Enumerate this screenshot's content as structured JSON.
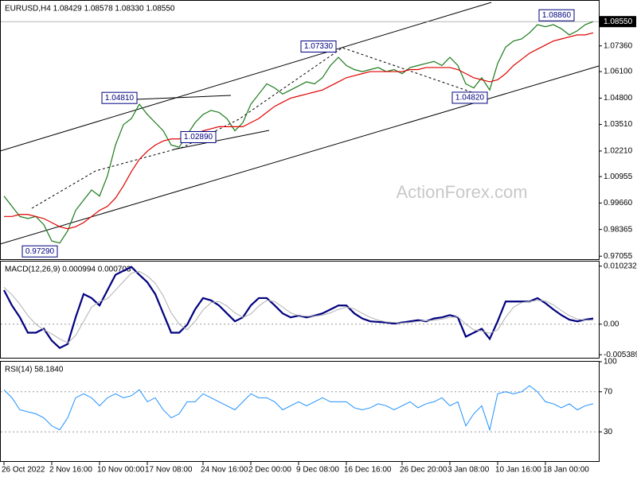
{
  "chart_data": [
    {
      "type": "line",
      "title": "EURUSD,H4  1.08429 1.08578 1.08330 1.08550",
      "watermark": "ActionForex.com",
      "categories": [
        "26 Oct 2022",
        null,
        null,
        null,
        null,
        null,
        "2 Nov 16:00",
        null,
        null,
        null,
        null,
        null,
        "10 Nov 00:00",
        null,
        null,
        null,
        null,
        null,
        "17 Nov 08:00",
        null,
        null,
        null,
        null,
        null,
        null,
        "24 Nov 16:00",
        null,
        null,
        null,
        null,
        null,
        "2 Dec 00:00",
        null,
        null,
        null,
        null,
        null,
        "9 Dec 08:00",
        null,
        null,
        null,
        null,
        null,
        "16 Dec 16:00",
        null,
        null,
        null,
        null,
        null,
        null,
        "26 Dec 20:00",
        null,
        null,
        null,
        null,
        null,
        "3 Jan 08:00",
        null,
        null,
        null,
        null,
        null,
        "10 Jan 16:00",
        null,
        null,
        null,
        null,
        null,
        "18 Jan 00:00",
        null,
        null,
        null,
        null,
        null,
        null
      ],
      "series": [
        {
          "color": "#1a7a1a",
          "width": 1.2,
          "values": [
            1.0,
            0.995,
            0.99,
            0.989,
            0.99,
            0.986,
            0.978,
            0.977,
            0.983,
            0.993,
            0.998,
            1.003,
            1.0,
            1.01,
            1.025,
            1.035,
            1.038,
            1.045,
            1.04,
            1.036,
            1.032,
            1.025,
            1.024,
            1.03,
            1.036,
            1.04,
            1.042,
            1.041,
            1.038,
            1.032,
            1.036,
            1.045,
            1.05,
            1.055,
            1.053,
            1.05,
            1.052,
            1.054,
            1.056,
            1.055,
            1.058,
            1.064,
            1.068,
            1.064,
            1.062,
            1.061,
            1.062,
            1.063,
            1.061,
            1.062,
            1.06,
            1.063,
            1.064,
            1.065,
            1.066,
            1.064,
            1.068,
            1.064,
            1.055,
            1.053,
            1.058,
            1.052,
            1.065,
            1.073,
            1.076,
            1.077,
            1.08,
            1.084,
            1.083,
            1.084,
            1.082,
            1.079,
            1.081,
            1.084,
            1.0855
          ]
        },
        {
          "color": "#e00000",
          "width": 1.2,
          "values": [
            0.99,
            0.99,
            0.991,
            0.991,
            0.99,
            0.989,
            0.987,
            0.985,
            0.984,
            0.985,
            0.987,
            0.99,
            0.993,
            0.995,
            0.999,
            1.005,
            1.012,
            1.018,
            1.022,
            1.025,
            1.027,
            1.028,
            1.028,
            1.029,
            1.03,
            1.032,
            1.033,
            1.034,
            1.034,
            1.034,
            1.034,
            1.036,
            1.038,
            1.041,
            1.044,
            1.046,
            1.048,
            1.049,
            1.05,
            1.051,
            1.052,
            1.054,
            1.056,
            1.058,
            1.059,
            1.06,
            1.061,
            1.061,
            1.061,
            1.061,
            1.061,
            1.062,
            1.062,
            1.063,
            1.063,
            1.063,
            1.063,
            1.062,
            1.06,
            1.058,
            1.057,
            1.056,
            1.057,
            1.06,
            1.064,
            1.067,
            1.07,
            1.072,
            1.074,
            1.076,
            1.077,
            1.078,
            1.079,
            1.079,
            1.08
          ]
        }
      ],
      "ylim": [
        0.9687,
        1.0957
      ],
      "yticks": [
        {
          "value": 1.0736,
          "label": "1.07360"
        },
        {
          "value": 1.061,
          "label": "1.06100"
        },
        {
          "value": 1.048,
          "label": "1.04800"
        },
        {
          "value": 1.0351,
          "label": "1.03510"
        },
        {
          "value": 1.0221,
          "label": "1.02210"
        },
        {
          "value": 1.00955,
          "label": "1.00955"
        },
        {
          "value": 0.9966,
          "label": "0.99660"
        },
        {
          "value": 0.98365,
          "label": "0.98365"
        },
        {
          "value": 0.97055,
          "label": "0.97055"
        }
      ],
      "current_price": {
        "value": 1.0855,
        "label": "1.08550"
      },
      "annotations": [
        {
          "index": 17,
          "value": 1.0481,
          "label": "1.04810"
        },
        {
          "index": 22,
          "value": 1.0289,
          "label": "1.02890"
        },
        {
          "index": 42,
          "value": 1.0733,
          "label": "1.07330"
        },
        {
          "index": 61,
          "value": 1.0482,
          "label": "1.04820"
        },
        {
          "index": 67,
          "value": 1.0886,
          "label": "1.08860"
        },
        {
          "index": 7,
          "value": 0.9729,
          "label": "0.97290"
        }
      ]
    },
    {
      "type": "line",
      "title": "MACD(12,26,9) 0.000994 0.000703",
      "series": [
        {
          "color": "#000080",
          "width": 2.2,
          "values": [
            0.006,
            0.0033,
            0.0012,
            -0.0015,
            -0.0015,
            -0.0008,
            -0.0029,
            -0.0042,
            -0.0035,
            0.0012,
            0.0053,
            0.0046,
            0.0033,
            0.006,
            0.0087,
            0.0094,
            0.0101,
            0.0087,
            0.0074,
            0.0053,
            0.0019,
            -0.0015,
            -0.0015,
            -0.0001,
            0.0026,
            0.0046,
            0.0042,
            0.0033,
            0.0019,
            0.0005,
            0.0012,
            0.0033,
            0.0046,
            0.0046,
            0.0033,
            0.0019,
            0.0012,
            0.0015,
            0.0012,
            0.0015,
            0.0019,
            0.0026,
            0.0033,
            0.0033,
            0.0019,
            0.001,
            0.0005,
            0.0004,
            0.0003,
            0.0001,
            0.0003,
            0.0005,
            0.0007,
            0.0005,
            0.001,
            0.0012,
            0.0016,
            0.0012,
            -0.0022,
            -0.0015,
            -0.0008,
            -0.0026,
            0.0005,
            0.004,
            0.004,
            0.004,
            0.004,
            0.0046,
            0.0037,
            0.0026,
            0.0016,
            0.0008,
            0.0005,
            0.0008,
            0.001
          ]
        },
        {
          "color": "#b0b0b0",
          "width": 1,
          "values": [
            0.0065,
            0.0052,
            0.0035,
            0.0015,
            0.0,
            -0.001,
            -0.0017,
            -0.0026,
            -0.0033,
            -0.002,
            0.0005,
            0.003,
            0.004,
            0.0045,
            0.006,
            0.0075,
            0.009,
            0.0093,
            0.0085,
            0.0072,
            0.005,
            0.002,
            0.0,
            -0.001,
            0.0005,
            0.0025,
            0.0038,
            0.004,
            0.0032,
            0.002,
            0.0012,
            0.0018,
            0.0032,
            0.0042,
            0.004,
            0.003,
            0.002,
            0.0015,
            0.0014,
            0.0014,
            0.0016,
            0.002,
            0.0026,
            0.003,
            0.0027,
            0.0019,
            0.0012,
            0.0007,
            0.0004,
            0.0003,
            0.0002,
            0.0003,
            0.0005,
            0.0006,
            0.0007,
            0.0009,
            0.0012,
            0.0013,
            0.0,
            -0.001,
            -0.0012,
            -0.0016,
            -0.001,
            0.0012,
            0.003,
            0.0038,
            0.004,
            0.0042,
            0.0041,
            0.0034,
            0.0024,
            0.0015,
            0.0009,
            0.0007,
            0.0007
          ]
        }
      ],
      "ylim": [
        -0.00606,
        0.01104
      ],
      "yticks": [
        0.010232,
        {
          "value": 0,
          "label": "0.00"
        },
        -0.005389
      ],
      "zero_line": true
    },
    {
      "type": "line",
      "title": "RSI(14) 58.1840",
      "series": [
        {
          "color": "#1e90ff",
          "width": 1,
          "values": [
            72,
            64,
            52,
            50,
            48,
            44,
            36,
            32,
            44,
            64,
            68,
            64,
            56,
            64,
            68,
            64,
            66,
            72,
            60,
            64,
            52,
            44,
            48,
            60,
            60,
            68,
            64,
            60,
            56,
            52,
            60,
            68,
            64,
            64,
            60,
            52,
            56,
            60,
            56,
            60,
            64,
            60,
            60,
            60,
            54,
            52,
            54,
            58,
            56,
            52,
            56,
            60,
            54,
            58,
            60,
            64,
            56,
            60,
            36,
            48,
            56,
            32,
            68,
            70,
            68,
            70,
            76,
            70,
            60,
            58,
            54,
            58,
            52,
            56,
            58
          ]
        }
      ],
      "ylim": [
        0,
        100
      ],
      "yticks": [
        100,
        70,
        30
      ],
      "grid": "dotted"
    }
  ]
}
